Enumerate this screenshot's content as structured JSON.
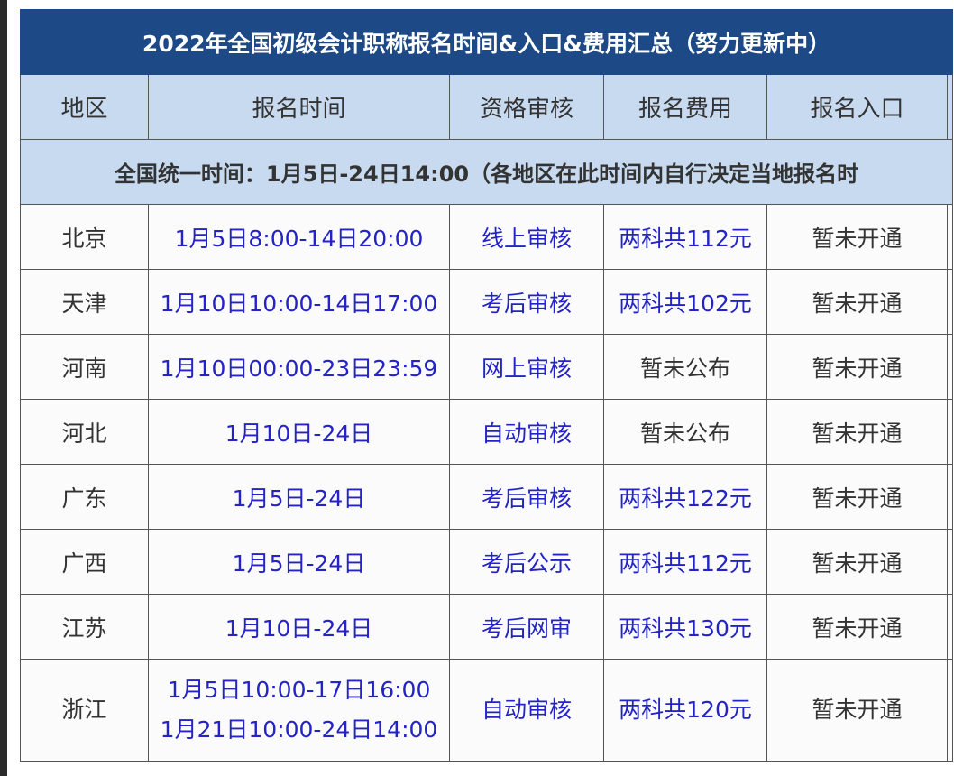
{
  "title": "2022年全国初级会计职称报名时间&入口&费用汇总（努力更新中）",
  "headers": [
    "地区",
    "报名时间",
    "资格审核",
    "报名费用",
    "报名入口"
  ],
  "notice": "全国统一时间：1月5日-24日14:00（各地区在此时间内自行决定当地报名时",
  "rows": [
    {
      "region": "北京",
      "time": "1月5日8:00-14日20:00",
      "review": "线上审核",
      "fee": "两科共112元",
      "entry": "暂未开通"
    },
    {
      "region": "天津",
      "time": "1月10日10:00-14日17:00",
      "review": "考后审核",
      "fee": "两科共102元",
      "entry": "暂未开通"
    },
    {
      "region": "河南",
      "time": "1月10日00:00-23日23:59",
      "review": "网上审核",
      "fee": "暂未公布",
      "entry": "暂未开通"
    },
    {
      "region": "河北",
      "time": "1月10日-24日",
      "review": "自动审核",
      "fee": "暂未公布",
      "entry": "暂未开通"
    },
    {
      "region": "广东",
      "time": "1月5日-24日",
      "review": "考后审核",
      "fee": "两科共122元",
      "entry": "暂未开通"
    },
    {
      "region": "广西",
      "time": "1月5日-24日",
      "review": "考后公示",
      "fee": "两科共112元",
      "entry": "暂未开通"
    },
    {
      "region": "江苏",
      "time": "1月10日-24日",
      "review": "考后网审",
      "fee": "两科共130元",
      "entry": "暂未开通"
    },
    {
      "region": "浙江",
      "time": "1月5日10:00-17日16:00",
      "time2": "1月21日10:00-24日14:00",
      "review": "自动审核",
      "fee": "两科共120元",
      "entry": "暂未开通"
    }
  ],
  "colors": {
    "title_bg": "#1d4a86",
    "header_bg": "#c7daf0",
    "link_text": "#2323c8",
    "plain_text": "#333333"
  }
}
